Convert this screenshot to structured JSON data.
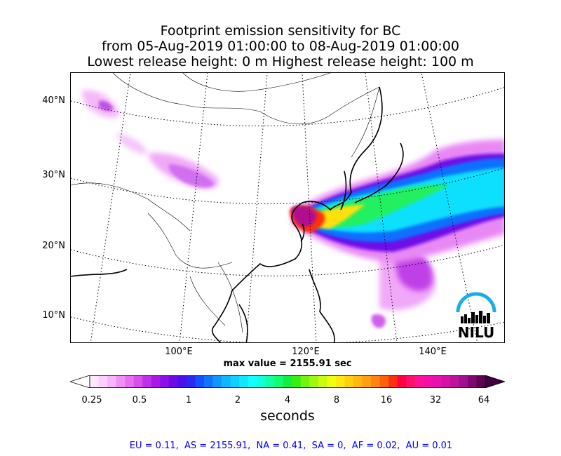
{
  "title": {
    "line1": "Footprint emission sensitivity for BC",
    "line2": "from 05-Aug-2019 01:00:00 to 08-Aug-2019 01:00:00",
    "line3": "Lowest release height: 0 m      Highest release height: 100 m"
  },
  "map": {
    "lat_labels": [
      "40°N",
      "30°N",
      "20°N",
      "10°N"
    ],
    "lon_labels": [
      "100°E",
      "120°E",
      "140°E"
    ],
    "max_value_text": "max value = 2155.91 sec"
  },
  "colorbar": {
    "ticks": [
      "0.25",
      "0.5",
      "1",
      "2",
      "4",
      "8",
      "16",
      "32",
      "64"
    ],
    "label": "seconds",
    "colors": [
      "#ffe8ff",
      "#ffd0ff",
      "#f8b4f8",
      "#f090f4",
      "#e870f0",
      "#d850ec",
      "#c030e8",
      "#a818e8",
      "#8c10e8",
      "#6a0ce8",
      "#4a10ee",
      "#2c28f4",
      "#1450ff",
      "#1074ff",
      "#1096ff",
      "#10b6ff",
      "#10d0ff",
      "#10e6ff",
      "#10ffff",
      "#10ffd8",
      "#10ffa8",
      "#10ff70",
      "#10f040",
      "#38f010",
      "#70f410",
      "#a0f810",
      "#c8fc10",
      "#f0ff10",
      "#ffe810",
      "#ffd010",
      "#ffb810",
      "#ffa010",
      "#ff8410",
      "#ff6010",
      "#ff3010",
      "#ff0040",
      "#ff1070",
      "#ff1098",
      "#f410a8",
      "#e810b0",
      "#d810a8",
      "#c0109c",
      "#a01090",
      "#800870",
      "#600050"
    ]
  },
  "region_totals": "EU = 0.11,  AS = 2155.91,  NA = 0.41,  SA = 0,  AF = 0.02,  AU = 0.01",
  "logo": {
    "text": "NILU",
    "arc_color": "#1aaee8"
  }
}
